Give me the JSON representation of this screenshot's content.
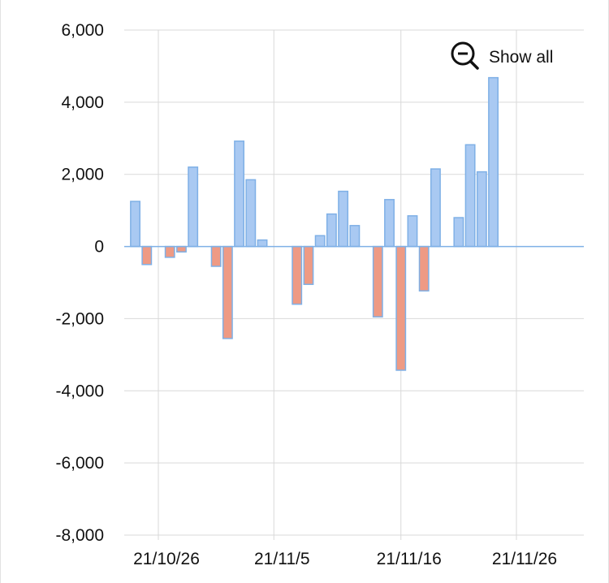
{
  "controls": {
    "show_all_label": "Show all",
    "show_all_icon": "zoom-out-icon"
  },
  "colors": {
    "positive_fill": "#a9c9f2",
    "positive_stroke": "#7fb0e6",
    "negative_fill": "#ee9a84",
    "negative_stroke": "#7fb0e6",
    "grid": "#d9d9d9",
    "axis": "#7fb0e6"
  },
  "chart_data": {
    "type": "bar",
    "title": "",
    "xlabel": "",
    "ylabel": "",
    "ylim": [
      -8000,
      6000
    ],
    "yticks": [
      -8000,
      -6000,
      -4000,
      -2000,
      0,
      2000,
      4000,
      6000
    ],
    "ytick_labels": [
      "-8,000",
      "-6,000",
      "-4,000",
      "-2,000",
      "0",
      "2,000",
      "4,000",
      "6,000"
    ],
    "xtick_labels": [
      "21/10/26",
      "21/11/5",
      "21/11/16",
      "21/11/26"
    ],
    "xtick_dates": [
      "2021-10-26",
      "2021-11-05",
      "2021-11-16",
      "2021-11-26"
    ],
    "grid": true,
    "dates": [
      "2021-10-24",
      "2021-10-25",
      "2021-10-26",
      "2021-10-27",
      "2021-10-28",
      "2021-10-29",
      "2021-10-31",
      "2021-11-01",
      "2021-11-02",
      "2021-11-03",
      "2021-11-04",
      "2021-11-05",
      "2021-11-07",
      "2021-11-08",
      "2021-11-09",
      "2021-11-10",
      "2021-11-11",
      "2021-11-12",
      "2021-11-14",
      "2021-11-15",
      "2021-11-16",
      "2021-11-17",
      "2021-11-18",
      "2021-11-19",
      "2021-11-21",
      "2021-11-22",
      "2021-11-23",
      "2021-11-24",
      "2021-11-25",
      "2021-11-26",
      "2021-11-27"
    ],
    "values": [
      1250,
      -500,
      0,
      -300,
      -150,
      2200,
      -550,
      -2550,
      2920,
      1850,
      180,
      0,
      -1600,
      -1050,
      300,
      900,
      1530,
      580,
      -1950,
      1300,
      -3430,
      850,
      -1230,
      2150,
      800,
      2820,
      2070,
      4680,
      0,
      0,
      0
    ]
  }
}
